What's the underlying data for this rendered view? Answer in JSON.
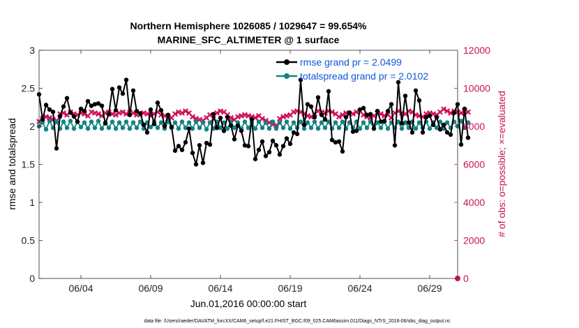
{
  "chart_data": {
    "type": "line",
    "title": "Northern Hemisphere 1026085 / 1029647 = 99.654%",
    "subtitle": "MARINE_SFC_ALTIMETER @ 1 surface",
    "xlabel": "Jun.01,2016 00:00:00 start",
    "ylabel": "rmse and totalspread",
    "ylabel_right": "# of obs: o=possible; ×=evaluated",
    "x_tick_labels": [
      "06/04",
      "06/09",
      "06/14",
      "06/19",
      "06/24",
      "06/29"
    ],
    "x_tick_days": [
      4,
      9,
      14,
      19,
      24,
      29
    ],
    "xlim": [
      1,
      31
    ],
    "ylim": [
      0,
      3
    ],
    "y_ticks": [
      "0",
      "0.5",
      "1",
      "1.5",
      "2",
      "2.5",
      "3"
    ],
    "ylim_right": [
      0,
      12000
    ],
    "y_ticks_right": [
      "0",
      "2000",
      "4000",
      "6000",
      "8000",
      "10000",
      "12000"
    ],
    "footer": "data file: /Users/raeder/DAI/ATM_forcXX/CAM6_setup/f.e21.FHIST_BGC.f09_025.CAM6assim.011/Diags_NTrS_2016-06/obs_diag_output.nc",
    "colors": {
      "rmse": "#000000",
      "totalspread": "#138282",
      "obs": "#d0105a",
      "legend_text": "#1055d8"
    },
    "series": [
      {
        "name": "rmse",
        "legend": "rmse grand pr = 2.0499",
        "values": [
          2.42,
          2.09,
          2.28,
          2.22,
          2.19,
          1.71,
          2.13,
          2.26,
          2.37,
          2.18,
          2.13,
          2.06,
          2.23,
          2.2,
          2.33,
          2.27,
          2.29,
          2.3,
          2.27,
          2.04,
          2.16,
          2.49,
          2.21,
          2.51,
          2.43,
          2.61,
          2.15,
          2.47,
          2.2,
          2.17,
          2.02,
          1.92,
          2.22,
          2.03,
          2.31,
          2.21,
          2.0,
          2.15,
          1.99,
          1.68,
          1.74,
          1.69,
          1.79,
          1.97,
          1.65,
          1.5,
          1.75,
          1.52,
          1.78,
          1.76,
          2.16,
          1.98,
          2.11,
          1.94,
          2.12,
          2.01,
          1.83,
          2.01,
          1.94,
          1.75,
          1.74,
          2.09,
          1.57,
          1.69,
          1.8,
          1.61,
          1.66,
          1.81,
          1.75,
          1.63,
          1.74,
          1.84,
          1.77,
          1.92,
          1.9,
          2.61,
          2.02,
          2.29,
          2.26,
          2.12,
          2.38,
          2.15,
          2.09,
          2.46,
          1.82,
          1.79,
          1.8,
          1.67,
          2.12,
          2.18,
          1.93,
          1.94,
          2.22,
          2.24,
          2.15,
          2.16,
          1.97,
          2.2,
          2.06,
          2.07,
          2.2,
          2.29,
          1.75,
          2.58,
          2.04,
          2.4,
          2.05,
          1.92,
          2.47,
          2.34,
          1.92,
          2.12,
          2.14,
          2.02,
          2.12,
          1.96,
          2.02,
          1.92,
          1.89,
          2.18,
          2.29,
          1.76,
          2.23,
          1.85
        ]
      },
      {
        "name": "totalspread",
        "legend": "totalspread grand pr = 2.0102",
        "values": [
          2.0,
          2.05,
          1.96,
          2.07,
          1.98,
          2.06,
          1.97,
          2.06,
          1.98,
          2.07,
          1.97,
          2.06,
          1.99,
          2.05,
          1.97,
          2.06,
          1.98,
          2.07,
          1.97,
          2.05,
          1.98,
          2.06,
          1.97,
          2.05,
          1.98,
          2.06,
          1.97,
          2.05,
          1.98,
          2.06,
          1.97,
          2.05,
          1.99,
          2.06,
          1.98,
          2.05,
          1.97,
          2.06,
          1.98,
          2.05,
          1.97,
          2.06,
          1.98,
          2.05,
          1.97,
          2.06,
          1.98,
          2.05,
          1.96,
          2.05,
          1.97,
          2.06,
          1.98,
          2.05,
          1.97,
          2.06,
          1.98,
          2.05,
          1.97,
          2.06,
          1.98,
          2.05,
          1.97,
          2.06,
          1.98,
          2.05,
          1.97,
          2.06,
          1.97,
          2.05,
          1.98,
          2.06,
          1.97,
          2.05,
          1.98,
          2.06,
          1.97,
          2.05,
          1.98,
          2.06,
          1.97,
          2.05,
          1.98,
          2.06,
          1.97,
          2.05,
          1.98,
          2.06,
          1.97,
          2.05,
          1.98,
          2.06,
          1.97,
          2.05,
          1.98,
          2.06,
          1.97,
          2.05,
          1.98,
          2.06,
          1.97,
          2.05,
          1.98,
          2.06,
          1.97,
          2.05,
          1.98,
          2.06,
          1.97,
          2.05,
          1.98,
          2.06,
          1.97,
          2.05,
          1.98,
          2.06,
          1.97,
          2.05,
          1.98,
          2.06,
          2.0,
          2.07,
          1.98,
          2.05
        ]
      },
      {
        "name": "obs_evaluated",
        "axis": "right",
        "values": [
          8250,
          8400,
          8500,
          8450,
          8350,
          8300,
          8650,
          8700,
          8600,
          8750,
          8650,
          8600,
          8700,
          8650,
          8550,
          8750,
          8700,
          8650,
          8550,
          8700,
          8750,
          8650,
          8600,
          8700,
          8750,
          8650,
          8750,
          8700,
          8600,
          8600,
          8700,
          8650,
          8550,
          8650,
          8750,
          8600,
          8550,
          8400,
          8450,
          8650,
          8750,
          8700,
          8800,
          8700,
          8500,
          8400,
          8350,
          8300,
          8450,
          8600,
          8400,
          8700,
          8800,
          8750,
          8600,
          8450,
          8350,
          8500,
          8550,
          8600,
          8550,
          8500,
          8450,
          8550,
          8400,
          8300,
          8200,
          8100,
          8050,
          8400,
          8500,
          8550,
          8600,
          8750,
          8800,
          8750,
          8650,
          8550,
          8500,
          8650,
          8800,
          8750,
          8700,
          8800,
          8750,
          8650,
          8500,
          8600,
          8700,
          8650,
          8650,
          8750,
          8800,
          8600,
          8500,
          8450,
          8550,
          8700,
          8650,
          8550,
          8600,
          8450,
          8700,
          8800,
          8700,
          8650,
          8800,
          8750,
          8600,
          8550,
          8500,
          8650,
          8700,
          8650,
          8600,
          8750,
          8900,
          8800,
          8700,
          8800,
          8750,
          8700,
          8800,
          8750
        ]
      },
      {
        "name": "obs_possible",
        "axis": "right",
        "note": "only the final value is visible (at zero)",
        "last_value": 0
      }
    ]
  }
}
